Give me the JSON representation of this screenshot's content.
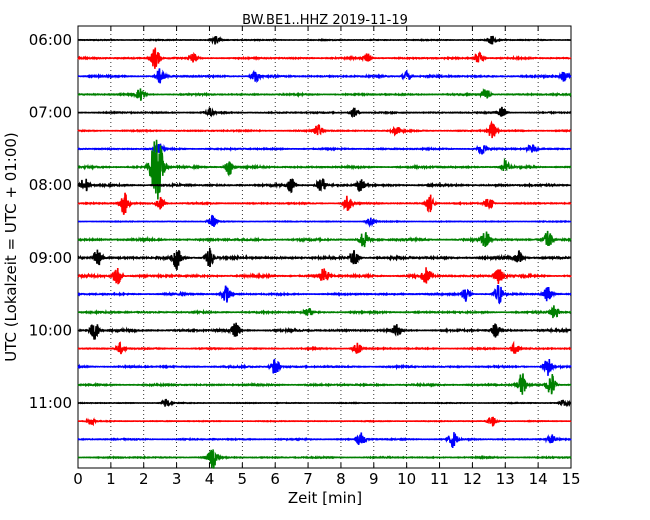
{
  "chart_data": {
    "type": "line",
    "title": "BW.BE1..HHZ 2019-11-19",
    "xlabel": "Zeit  [min]",
    "ylabel": "UTC (Lokalzeit = UTC + 01:00)",
    "xlim": [
      0,
      15
    ],
    "x_ticks": [
      "0",
      "1",
      "2",
      "3",
      "4",
      "5",
      "6",
      "7",
      "8",
      "9",
      "10",
      "11",
      "12",
      "13",
      "14",
      "15"
    ],
    "y_ticks": [
      {
        "label": "06:00",
        "trace": 0
      },
      {
        "label": "07:00",
        "trace": 4
      },
      {
        "label": "08:00",
        "trace": 8
      },
      {
        "label": "09:00",
        "trace": 12
      },
      {
        "label": "10:00",
        "trace": 16
      },
      {
        "label": "11:00",
        "trace": 20
      }
    ],
    "grid": "vertical dotted at each minute",
    "colors": [
      "#000000",
      "#ff0000",
      "#0000ff",
      "#008000"
    ],
    "traces_start": "06:00",
    "trace_interval_minutes": 15,
    "series": [
      {
        "start": "06:00",
        "color": "#000000",
        "amplitude": 0.25,
        "events": [
          [
            4.2,
            0.5
          ],
          [
            12.6,
            0.45
          ]
        ]
      },
      {
        "start": "06:15",
        "color": "#ff0000",
        "amplitude": 0.4,
        "events": [
          [
            2.35,
            1.2
          ],
          [
            3.5,
            0.5
          ],
          [
            8.8,
            0.5
          ],
          [
            12.2,
            0.6
          ]
        ]
      },
      {
        "start": "06:30",
        "color": "#0000ff",
        "amplitude": 0.45,
        "events": [
          [
            2.5,
            0.8
          ],
          [
            5.4,
            0.6
          ],
          [
            10.0,
            0.55
          ],
          [
            14.8,
            0.6
          ]
        ]
      },
      {
        "start": "06:45",
        "color": "#008000",
        "amplitude": 0.4,
        "events": [
          [
            1.9,
            0.7
          ],
          [
            12.4,
            0.6
          ]
        ]
      },
      {
        "start": "07:00",
        "color": "#000000",
        "amplitude": 0.35,
        "events": [
          [
            4.0,
            0.5
          ],
          [
            8.4,
            0.5
          ],
          [
            12.9,
            0.6
          ]
        ]
      },
      {
        "start": "07:15",
        "color": "#ff0000",
        "amplitude": 0.35,
        "events": [
          [
            7.3,
            0.6
          ],
          [
            9.7,
            0.5
          ],
          [
            12.6,
            0.8
          ]
        ]
      },
      {
        "start": "07:30",
        "color": "#0000ff",
        "amplitude": 0.4,
        "events": [
          [
            2.5,
            0.6
          ],
          [
            12.3,
            0.6
          ],
          [
            13.8,
            0.5
          ]
        ]
      },
      {
        "start": "07:45",
        "color": "#008000",
        "amplitude": 0.5,
        "events": [
          [
            2.4,
            3.5
          ],
          [
            4.6,
            0.8
          ],
          [
            13.0,
            0.7
          ]
        ]
      },
      {
        "start": "08:00",
        "color": "#000000",
        "amplitude": 0.5,
        "events": [
          [
            0.2,
            0.9
          ],
          [
            6.5,
            0.7
          ],
          [
            7.4,
            0.9
          ],
          [
            8.6,
            0.7
          ]
        ]
      },
      {
        "start": "08:15",
        "color": "#ff0000",
        "amplitude": 0.35,
        "events": [
          [
            1.4,
            1.2
          ],
          [
            2.5,
            0.7
          ],
          [
            8.2,
            0.8
          ],
          [
            10.7,
            1.0
          ],
          [
            12.5,
            0.7
          ]
        ]
      },
      {
        "start": "08:30",
        "color": "#0000ff",
        "amplitude": 0.2,
        "events": [
          [
            4.1,
            0.6
          ],
          [
            8.9,
            0.4
          ]
        ]
      },
      {
        "start": "08:45",
        "color": "#008000",
        "amplitude": 0.55,
        "events": [
          [
            8.7,
            1.0
          ],
          [
            12.4,
            1.0
          ],
          [
            14.3,
            0.9
          ]
        ]
      },
      {
        "start": "09:00",
        "color": "#000000",
        "amplitude": 0.65,
        "events": [
          [
            0.6,
            1.1
          ],
          [
            3.0,
            1.2
          ],
          [
            4.0,
            1.0
          ],
          [
            8.4,
            0.8
          ],
          [
            13.4,
            0.7
          ]
        ]
      },
      {
        "start": "09:15",
        "color": "#ff0000",
        "amplitude": 0.6,
        "events": [
          [
            1.2,
            0.9
          ],
          [
            7.5,
            1.0
          ],
          [
            10.6,
            0.9
          ],
          [
            12.8,
            0.8
          ]
        ]
      },
      {
        "start": "09:30",
        "color": "#0000ff",
        "amplitude": 0.45,
        "events": [
          [
            4.5,
            0.9
          ],
          [
            11.8,
            0.8
          ],
          [
            12.8,
            1.1
          ],
          [
            14.3,
            0.9
          ]
        ]
      },
      {
        "start": "09:45",
        "color": "#008000",
        "amplitude": 0.45,
        "events": [
          [
            7.0,
            0.5
          ],
          [
            14.5,
            0.7
          ]
        ]
      },
      {
        "start": "10:00",
        "color": "#000000",
        "amplitude": 0.55,
        "events": [
          [
            0.5,
            1.1
          ],
          [
            4.8,
            0.8
          ],
          [
            9.7,
            0.7
          ],
          [
            12.7,
            0.7
          ]
        ]
      },
      {
        "start": "10:15",
        "color": "#ff0000",
        "amplitude": 0.35,
        "events": [
          [
            1.3,
            0.6
          ],
          [
            8.5,
            0.6
          ],
          [
            13.3,
            0.6
          ]
        ]
      },
      {
        "start": "10:30",
        "color": "#0000ff",
        "amplitude": 0.45,
        "events": [
          [
            6.0,
            0.9
          ],
          [
            14.3,
            1.0
          ]
        ]
      },
      {
        "start": "10:45",
        "color": "#008000",
        "amplitude": 0.45,
        "events": [
          [
            13.5,
            1.3
          ],
          [
            14.4,
            1.3
          ]
        ]
      },
      {
        "start": "11:00",
        "color": "#000000",
        "amplitude": 0.2,
        "events": [
          [
            2.7,
            0.5
          ],
          [
            14.8,
            0.4
          ]
        ]
      },
      {
        "start": "11:15",
        "color": "#ff0000",
        "amplitude": 0.2,
        "events": [
          [
            0.4,
            0.4
          ],
          [
            12.6,
            0.6
          ]
        ]
      },
      {
        "start": "11:30",
        "color": "#0000ff",
        "amplitude": 0.35,
        "events": [
          [
            8.6,
            0.7
          ],
          [
            11.4,
            0.9
          ],
          [
            14.4,
            0.5
          ]
        ]
      },
      {
        "start": "11:45",
        "color": "#008000",
        "amplitude": 0.35,
        "events": [
          [
            4.1,
            1.2
          ]
        ]
      }
    ]
  }
}
